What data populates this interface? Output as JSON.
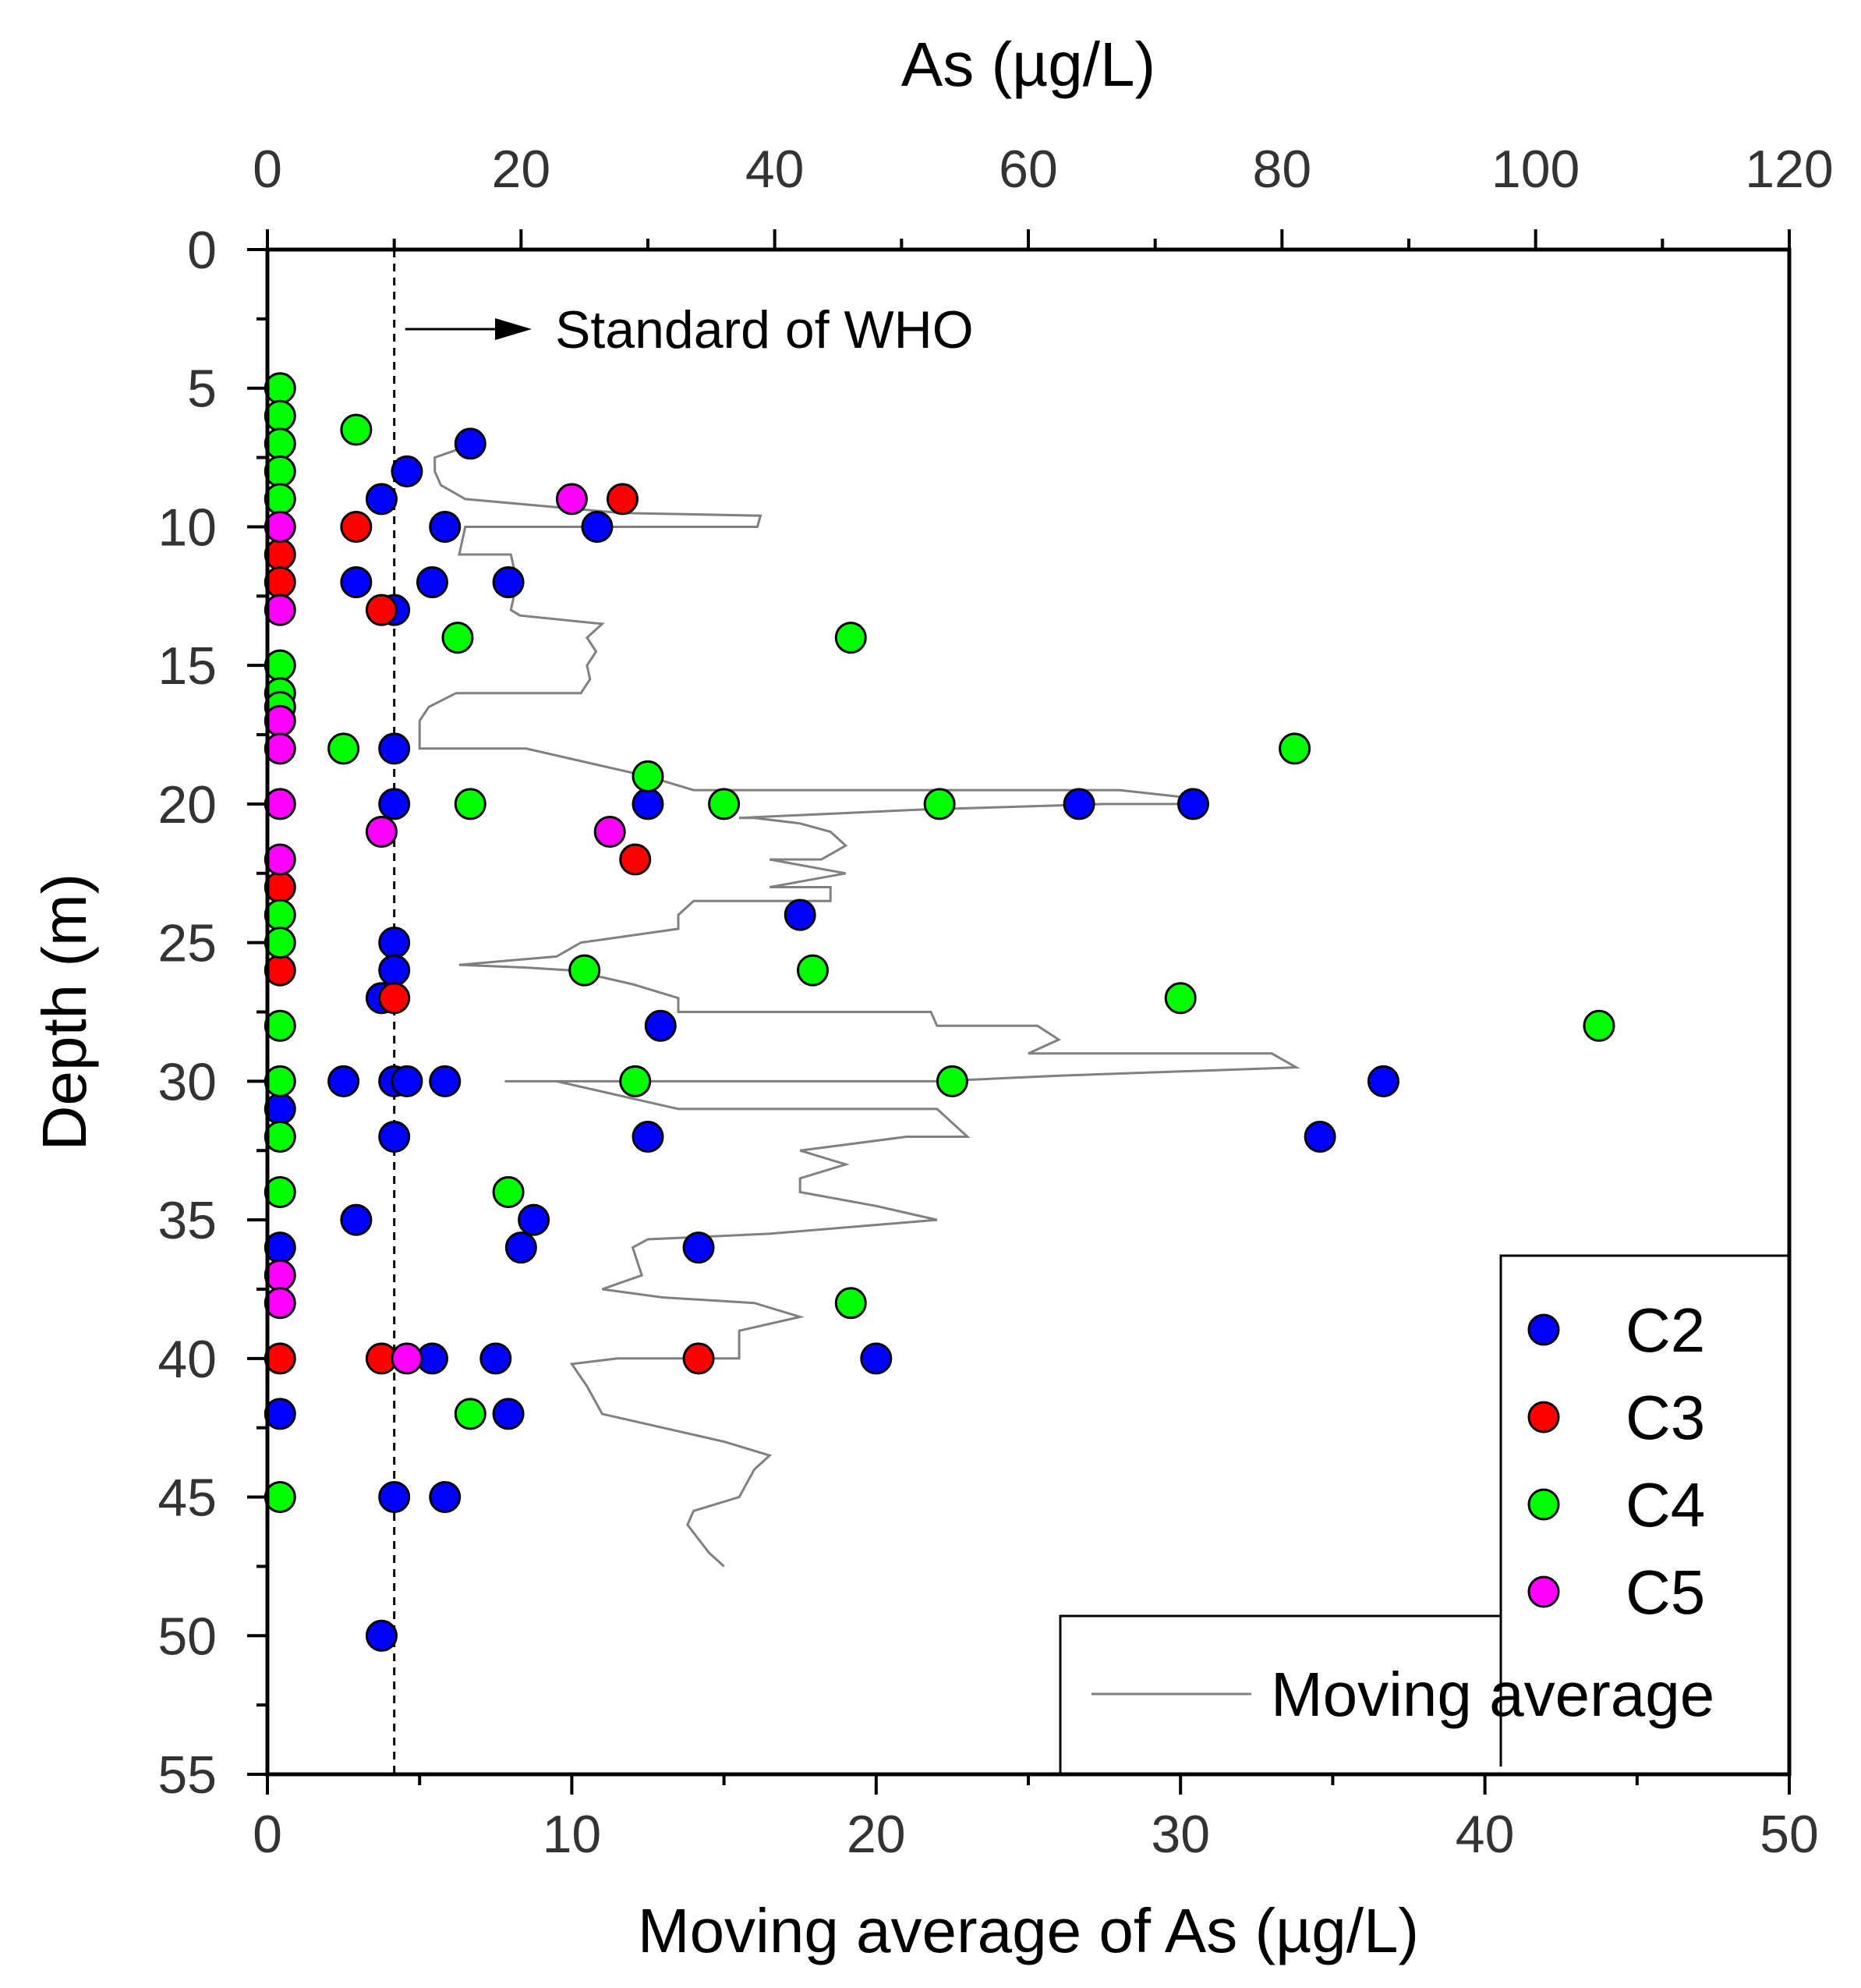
{
  "chart_data": {
    "type": "scatter",
    "top_axis": {
      "label": "As (µg/L)",
      "range": [
        0,
        120
      ],
      "ticks": [
        "0",
        "20",
        "40",
        "60",
        "80",
        "100",
        "120"
      ]
    },
    "bottom_axis": {
      "label": "Moving average of As (µg/L)",
      "range": [
        0,
        50
      ],
      "ticks": [
        "0",
        "10",
        "20",
        "30",
        "40",
        "50"
      ]
    },
    "y_axis": {
      "label": "Depth (m)",
      "range": [
        0,
        55
      ],
      "inverted": true,
      "ticks": [
        "0",
        "5",
        "10",
        "15",
        "20",
        "25",
        "30",
        "35",
        "40",
        "45",
        "50",
        "55"
      ]
    },
    "reference_line": {
      "label": "Standard of WHO",
      "x": 10,
      "axis": "top",
      "style": "dashed"
    },
    "legend": {
      "position": "bottom-right",
      "entries": [
        "C2",
        "C3",
        "C4",
        "C5",
        "Moving average"
      ]
    },
    "series": [
      {
        "name": "C2",
        "color": "#0000ff",
        "axis": "top",
        "points": [
          [
            16,
            7
          ],
          [
            11,
            8
          ],
          [
            9,
            9
          ],
          [
            14,
            10
          ],
          [
            26,
            10
          ],
          [
            7,
            12
          ],
          [
            13,
            12
          ],
          [
            19,
            12
          ],
          [
            10,
            13
          ],
          [
            10,
            18
          ],
          [
            10,
            20
          ],
          [
            30,
            20
          ],
          [
            64,
            20
          ],
          [
            73,
            20
          ],
          [
            42,
            24
          ],
          [
            10,
            25
          ],
          [
            10,
            26
          ],
          [
            9,
            27
          ],
          [
            31,
            28
          ],
          [
            6,
            30
          ],
          [
            10,
            30
          ],
          [
            11,
            30
          ],
          [
            14,
            30
          ],
          [
            88,
            30
          ],
          [
            1,
            31
          ],
          [
            10,
            32
          ],
          [
            30,
            32
          ],
          [
            83,
            32
          ],
          [
            7,
            35
          ],
          [
            21,
            35
          ],
          [
            1,
            36
          ],
          [
            20,
            36
          ],
          [
            34,
            36
          ],
          [
            13,
            40
          ],
          [
            18,
            40
          ],
          [
            48,
            40
          ],
          [
            1,
            42
          ],
          [
            19,
            42
          ],
          [
            10,
            45
          ],
          [
            14,
            45
          ],
          [
            9,
            50
          ]
        ]
      },
      {
        "name": "C3",
        "color": "#ff0000",
        "axis": "top",
        "points": [
          [
            28,
            9
          ],
          [
            7,
            10
          ],
          [
            1,
            11
          ],
          [
            1,
            12
          ],
          [
            9,
            13
          ],
          [
            29,
            22
          ],
          [
            1,
            23
          ],
          [
            1,
            26
          ],
          [
            10,
            27
          ],
          [
            9,
            40
          ],
          [
            34,
            40
          ],
          [
            1,
            40
          ]
        ]
      },
      {
        "name": "C4",
        "color": "#00ff00",
        "axis": "top",
        "points": [
          [
            1,
            5
          ],
          [
            1,
            6
          ],
          [
            7,
            6.5
          ],
          [
            1,
            7
          ],
          [
            1,
            8
          ],
          [
            1,
            9
          ],
          [
            15,
            14
          ],
          [
            46,
            14
          ],
          [
            1,
            15
          ],
          [
            1,
            16
          ],
          [
            1,
            16.5
          ],
          [
            6,
            18
          ],
          [
            81,
            18
          ],
          [
            30,
            19
          ],
          [
            16,
            20
          ],
          [
            36,
            20
          ],
          [
            53,
            20
          ],
          [
            1,
            24
          ],
          [
            1,
            25
          ],
          [
            25,
            26
          ],
          [
            43,
            26
          ],
          [
            72,
            27
          ],
          [
            1,
            28
          ],
          [
            105,
            28
          ],
          [
            1,
            30
          ],
          [
            29,
            30
          ],
          [
            54,
            30
          ],
          [
            1,
            32
          ],
          [
            1,
            34
          ],
          [
            19,
            34
          ],
          [
            46,
            38
          ],
          [
            16,
            42
          ],
          [
            1,
            45
          ]
        ]
      },
      {
        "name": "C5",
        "color": "#ff00ff",
        "axis": "top",
        "points": [
          [
            24,
            9
          ],
          [
            1,
            10
          ],
          [
            1,
            13
          ],
          [
            1,
            17
          ],
          [
            1,
            18
          ],
          [
            1,
            20
          ],
          [
            9,
            21
          ],
          [
            27,
            21
          ],
          [
            1,
            22
          ],
          [
            1,
            37
          ],
          [
            1,
            38
          ],
          [
            11,
            40
          ]
        ]
      },
      {
        "name": "Moving average",
        "color": "#808080",
        "axis": "bottom",
        "style": "line",
        "points": [
          [
            6.8,
            7
          ],
          [
            5.5,
            7.5
          ],
          [
            5.5,
            8
          ],
          [
            5.7,
            8.5
          ],
          [
            6.5,
            9
          ],
          [
            11.6,
            9.5
          ],
          [
            16.2,
            9.6
          ],
          [
            16.1,
            10
          ],
          [
            6.5,
            10
          ],
          [
            6.3,
            11
          ],
          [
            8,
            11
          ],
          [
            8.2,
            12
          ],
          [
            8.3,
            12
          ],
          [
            8.1,
            12.5
          ],
          [
            8,
            13
          ],
          [
            8.3,
            13.2
          ],
          [
            11,
            13.5
          ],
          [
            10.5,
            14
          ],
          [
            10.8,
            14.5
          ],
          [
            10.5,
            15
          ],
          [
            10.6,
            15.5
          ],
          [
            10.3,
            16
          ],
          [
            6.2,
            16
          ],
          [
            5.3,
            16.5
          ],
          [
            5,
            17
          ],
          [
            5,
            18
          ],
          [
            8.5,
            18
          ],
          [
            12.5,
            19
          ],
          [
            14,
            19.5
          ],
          [
            24,
            19.5
          ],
          [
            28,
            19.5
          ],
          [
            30.5,
            19.8
          ],
          [
            30,
            20
          ],
          [
            27.5,
            20
          ],
          [
            21.5,
            20.2
          ],
          [
            15.5,
            20.5
          ],
          [
            16,
            20.5
          ],
          [
            17.5,
            20.7
          ],
          [
            18.5,
            21
          ],
          [
            19,
            21.5
          ],
          [
            18.2,
            22
          ],
          [
            16.5,
            22
          ],
          [
            19,
            22.5
          ],
          [
            16.5,
            23
          ],
          [
            18.5,
            23
          ],
          [
            18.5,
            23.5
          ],
          [
            14,
            23.5
          ],
          [
            13.5,
            24
          ],
          [
            13.5,
            24.5
          ],
          [
            10.3,
            25
          ],
          [
            9.5,
            25.5
          ],
          [
            6.3,
            25.8
          ],
          [
            8.5,
            25.9
          ],
          [
            10,
            26
          ],
          [
            12,
            26.5
          ],
          [
            13.5,
            27
          ],
          [
            13.5,
            27.5
          ],
          [
            21.8,
            27.5
          ],
          [
            22,
            28
          ],
          [
            25.3,
            28
          ],
          [
            26,
            28.5
          ],
          [
            25,
            29
          ],
          [
            33,
            29
          ],
          [
            33.8,
            29.5
          ],
          [
            26,
            29.8
          ],
          [
            22,
            30
          ],
          [
            14,
            30
          ],
          [
            8,
            30
          ],
          [
            7.8,
            30
          ],
          [
            9.5,
            30
          ],
          [
            11.5,
            30.5
          ],
          [
            13.5,
            31
          ],
          [
            18,
            31
          ],
          [
            22,
            31
          ],
          [
            22.5,
            31.5
          ],
          [
            23,
            32
          ],
          [
            21,
            32
          ],
          [
            17.5,
            32.5
          ],
          [
            19,
            33
          ],
          [
            17.5,
            33.5
          ],
          [
            17.5,
            34
          ],
          [
            20,
            34.5
          ],
          [
            22,
            35
          ],
          [
            16.5,
            35.5
          ],
          [
            12.5,
            35.7
          ],
          [
            12,
            36
          ],
          [
            12.3,
            37
          ],
          [
            11,
            37.5
          ],
          [
            13,
            37.8
          ],
          [
            16,
            38
          ],
          [
            17.5,
            38.5
          ],
          [
            15.5,
            39
          ],
          [
            15.5,
            40
          ],
          [
            11.5,
            40
          ],
          [
            10,
            40.2
          ],
          [
            10.5,
            41
          ],
          [
            11,
            42
          ],
          [
            13,
            42.5
          ],
          [
            15,
            43
          ],
          [
            16.5,
            43.5
          ],
          [
            16,
            44
          ],
          [
            15.5,
            45
          ],
          [
            14,
            45.5
          ],
          [
            13.8,
            46
          ],
          [
            14.5,
            47
          ],
          [
            15,
            47.5
          ]
        ]
      }
    ]
  }
}
